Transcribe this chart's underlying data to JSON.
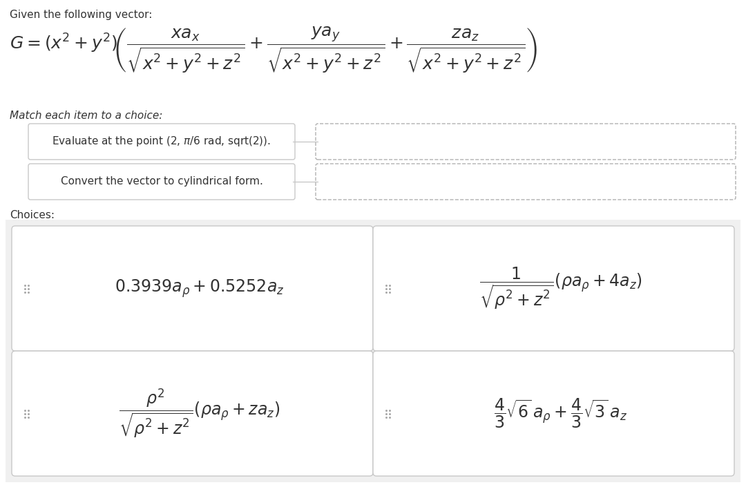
{
  "bg_color": "#f0f0f0",
  "white": "#ffffff",
  "text_color": "#333333",
  "border_color": "#c8c8c8",
  "dashed_border_color": "#b0b0b0",
  "title": "Given the following vector:",
  "match_label": "Match each item to a choice:",
  "choices_label": "Choices:",
  "item1_text": "Evaluate at the point (2, π/6 rad, sqrt(2)).",
  "item2_text": "Convert the vector to cylindrical form.",
  "formula_fontsize": 18,
  "label_fontsize": 11,
  "choice_fontsize": 17
}
